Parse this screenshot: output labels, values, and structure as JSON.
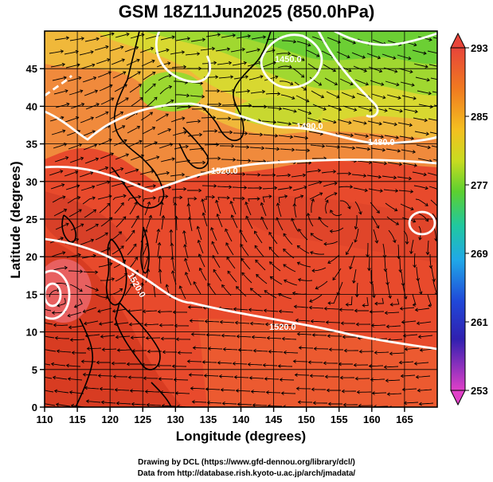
{
  "title": "GSM 18Z11Jun2025 (850.0hPa)",
  "xlabel": "Longitude (degrees)",
  "ylabel": "Latitude (degrees)",
  "credit_line1": "Drawing by DCL (https://www.gfd-dennou.org/library/dcl/)",
  "credit_line2": "Data from http://database.rish.kyoto-u.ac.jp/arch/jmadata/",
  "x_ticks": [
    "110",
    "115",
    "120",
    "125",
    "130",
    "135",
    "140",
    "145",
    "150",
    "155",
    "160",
    "165"
  ],
  "y_ticks": [
    "0",
    "5",
    "10",
    "15",
    "20",
    "25",
    "30",
    "35",
    "40",
    "45"
  ],
  "colorbar": {
    "labels": [
      "293",
      "285",
      "277",
      "269",
      "261",
      "253"
    ],
    "colors": [
      "#e8453a",
      "#f07a20",
      "#f4b820",
      "#d8dc20",
      "#7bd82e",
      "#2ed04a",
      "#20c8a8",
      "#20b0e0",
      "#2060e0",
      "#2030c0",
      "#6020b0",
      "#d040c8"
    ]
  },
  "contour_labels": [
    "1450.0",
    "1480.0",
    "1490.0",
    "1520.0",
    "1520.0",
    "1520.0"
  ],
  "colors": {
    "warm": "#e84a2c",
    "hot": "#d93b24",
    "orange": "#f0883a",
    "yellow": "#e8d830",
    "green": "#7ad234",
    "contour": "#ffffff",
    "streamline": "#000000"
  }
}
